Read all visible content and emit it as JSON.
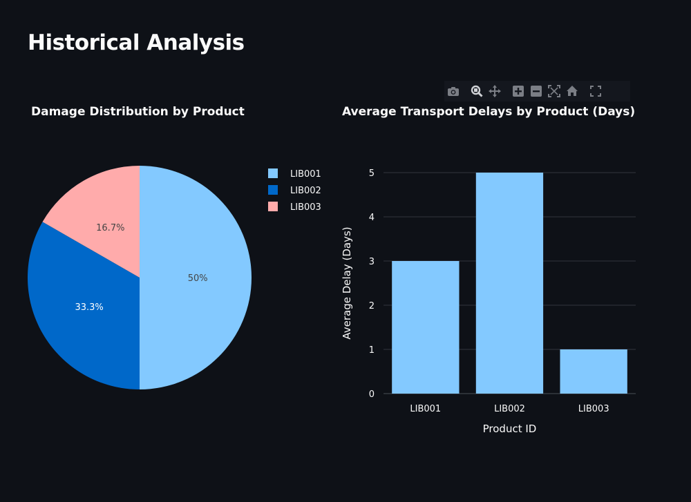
{
  "page": {
    "title": "Historical Analysis"
  },
  "modebar": {
    "buttons": [
      {
        "icon": "camera-icon"
      },
      {
        "icon": "zoom-icon"
      },
      {
        "icon": "pan-icon"
      },
      {
        "icon": "zoom-in-icon"
      },
      {
        "icon": "zoom-out-icon"
      },
      {
        "icon": "autoscale-icon"
      },
      {
        "icon": "reset-axes-icon"
      },
      {
        "icon": "fullscreen-icon"
      }
    ]
  },
  "colors": {
    "background": "#0e1117",
    "LIB001": "#83c9ff",
    "LIB002": "#0068c9",
    "LIB003": "#ffabab",
    "bar": "#83c9ff"
  },
  "chart_data": [
    {
      "type": "pie",
      "title": "Damage Distribution by Product",
      "labels": [
        "LIB001",
        "LIB002",
        "LIB003"
      ],
      "values": [
        50,
        33.3,
        16.7
      ],
      "text_labels": [
        "50%",
        "33.3%",
        "16.7%"
      ],
      "colors": [
        "#83c9ff",
        "#0068c9",
        "#ffabab"
      ],
      "legend": "right"
    },
    {
      "type": "bar",
      "title": "Average Transport Delays by Product (Days)",
      "categories": [
        "LIB001",
        "LIB002",
        "LIB003"
      ],
      "values": [
        3,
        5,
        1
      ],
      "xlabel": "Product ID",
      "ylabel": "Average Delay (Days)",
      "ylim": [
        0,
        5
      ],
      "yticks": [
        "0",
        "1",
        "2",
        "3",
        "4",
        "5"
      ],
      "grid": true,
      "color": "#83c9ff"
    }
  ]
}
